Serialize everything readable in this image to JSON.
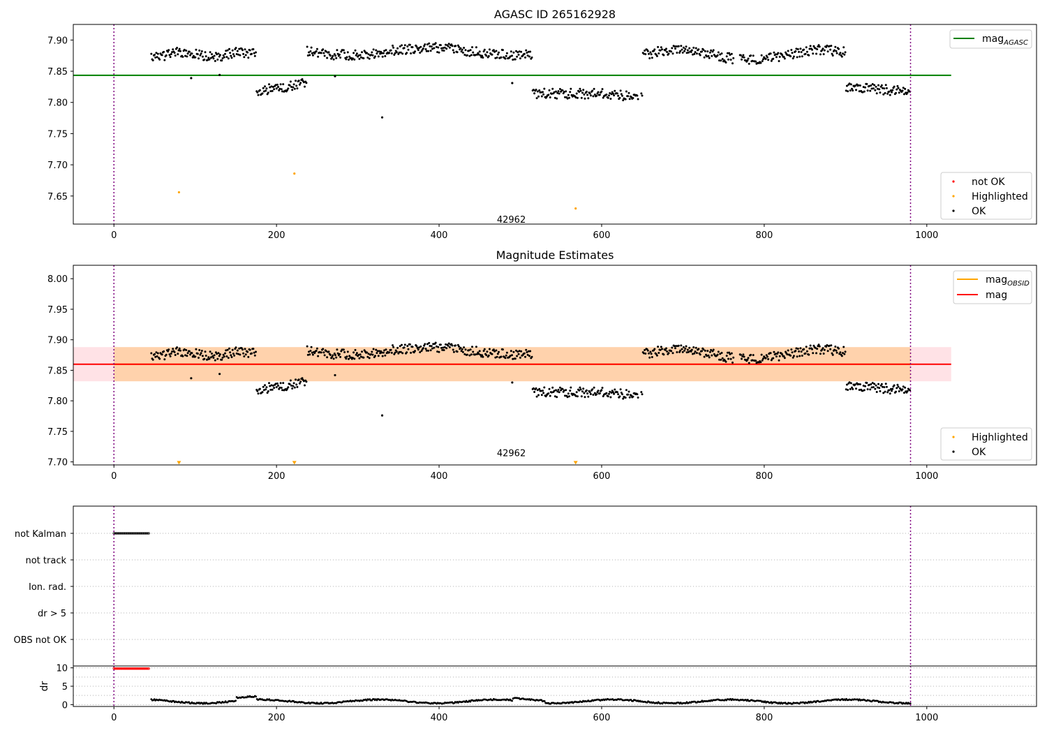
{
  "figure": {
    "title": "AGASC ID 265162928"
  },
  "chart_data": [
    {
      "type": "scatter",
      "title": "AGASC ID 265162928",
      "xlim": [
        -50,
        1135
      ],
      "ylim": [
        7.605,
        7.925
      ],
      "xticks": [
        0,
        200,
        400,
        600,
        800,
        1000
      ],
      "yticks": [
        7.65,
        7.7,
        7.75,
        7.8,
        7.85,
        7.9
      ],
      "ytick_labels": [
        "7.65",
        "7.70",
        "7.75",
        "7.80",
        "7.85",
        "7.90"
      ],
      "grid": false,
      "vlines": [
        0,
        980
      ],
      "annotation": {
        "text": "42962",
        "x": 490,
        "y": 7.613
      },
      "hline": {
        "name": "mag_AGASC",
        "y": 7.8435,
        "x": [
          -50,
          1030
        ],
        "color": "#008000"
      },
      "series": [
        {
          "name": "not OK",
          "color": "#ff0000",
          "points": []
        },
        {
          "name": "Highlighted",
          "color": "#ffa500",
          "points": [
            [
              80,
              7.656
            ],
            [
              222,
              7.686
            ],
            [
              568,
              7.63
            ]
          ]
        },
        {
          "name": "OK",
          "color": "#000000",
          "outliers": [
            [
              95,
              7.839
            ],
            [
              130,
              7.844
            ],
            [
              272,
              7.842
            ],
            [
              330,
              7.776
            ],
            [
              490,
              7.831
            ]
          ]
        }
      ],
      "legend": [
        {
          "label": "mag",
          "sub": "AGASC",
          "kind": "line",
          "color": "#008000",
          "position": "top-right"
        },
        {
          "label": "not OK",
          "kind": "marker",
          "color": "#ff0000",
          "position": "lower-right"
        },
        {
          "label": "Highlighted",
          "kind": "marker",
          "color": "#ffa500",
          "position": "lower-right"
        },
        {
          "label": "OK",
          "kind": "marker",
          "color": "#000000",
          "position": "lower-right"
        }
      ]
    },
    {
      "type": "scatter",
      "title": "Magnitude Estimates",
      "xlim": [
        -50,
        1135
      ],
      "ylim": [
        7.695,
        8.022
      ],
      "xticks": [
        0,
        200,
        400,
        600,
        800,
        1000
      ],
      "yticks": [
        7.7,
        7.75,
        7.8,
        7.85,
        7.9,
        7.95,
        8.0
      ],
      "ytick_labels": [
        "7.70",
        "7.75",
        "7.80",
        "7.85",
        "7.90",
        "7.95",
        "8.00"
      ],
      "grid": false,
      "vlines": [
        0,
        980
      ],
      "annotation": {
        "text": "42962",
        "x": 490,
        "y": 7.705
      },
      "bands": [
        {
          "y": [
            7.832,
            7.888
          ],
          "x": [
            -50,
            1030
          ],
          "color": "#ffb6c1",
          "opacity": 0.4
        },
        {
          "y": [
            7.832,
            7.888
          ],
          "x": [
            0,
            980
          ],
          "color": "#ffa500",
          "opacity": 0.25
        }
      ],
      "lines": [
        {
          "name": "mag_OBSID",
          "y": 7.86,
          "x": [
            0,
            980
          ],
          "color": "#ffa500"
        },
        {
          "name": "mag",
          "y": 7.86,
          "x": [
            -50,
            1030
          ],
          "color": "#ff0000"
        }
      ],
      "series": [
        {
          "name": "Highlighted",
          "color": "#ffa500",
          "marker": "triangle-down",
          "points": [
            [
              80,
              7.698
            ],
            [
              222,
              7.698
            ],
            [
              568,
              7.698
            ]
          ]
        },
        {
          "name": "OK",
          "color": "#000000",
          "outliers": [
            [
              95,
              7.837
            ],
            [
              130,
              7.844
            ],
            [
              272,
              7.842
            ],
            [
              330,
              7.776
            ],
            [
              490,
              7.83
            ]
          ]
        }
      ],
      "legend": [
        {
          "label": "mag",
          "sub": "OBSID",
          "kind": "line",
          "color": "#ffa500",
          "position": "top-right"
        },
        {
          "label": "mag",
          "kind": "line",
          "color": "#ff0000",
          "position": "top-right"
        },
        {
          "label": "Highlighted",
          "kind": "marker",
          "color": "#ffa500",
          "position": "lower-right"
        },
        {
          "label": "OK",
          "kind": "marker",
          "color": "#000000",
          "position": "lower-right"
        }
      ]
    },
    {
      "type": "scatter",
      "title": "",
      "xlim": [
        -50,
        1135
      ],
      "categories": [
        "not Kalman",
        "not track",
        "Ion. rad.",
        "dr > 5",
        "OBS not OK"
      ],
      "grid": true,
      "vlines": [
        0,
        980
      ],
      "flags": [
        {
          "category": "not Kalman",
          "x": [
            0,
            44
          ],
          "color": "#000000"
        }
      ]
    },
    {
      "type": "scatter",
      "title": "",
      "ylabel": "dr",
      "xlim": [
        -50,
        1135
      ],
      "ylim": [
        -0.5,
        10.5
      ],
      "xticks": [
        0,
        200,
        400,
        600,
        800,
        1000
      ],
      "yticks": [
        0,
        5,
        10
      ],
      "ytick_labels": [
        "0",
        "5",
        "10"
      ],
      "grid": true,
      "vlines": [
        0,
        980
      ],
      "series": [
        {
          "name": "not OK",
          "color": "#ff0000",
          "x": [
            0,
            44
          ],
          "y": 9.8
        },
        {
          "name": "OK",
          "color": "#000000",
          "x": [
            46,
            980
          ]
        }
      ]
    }
  ]
}
